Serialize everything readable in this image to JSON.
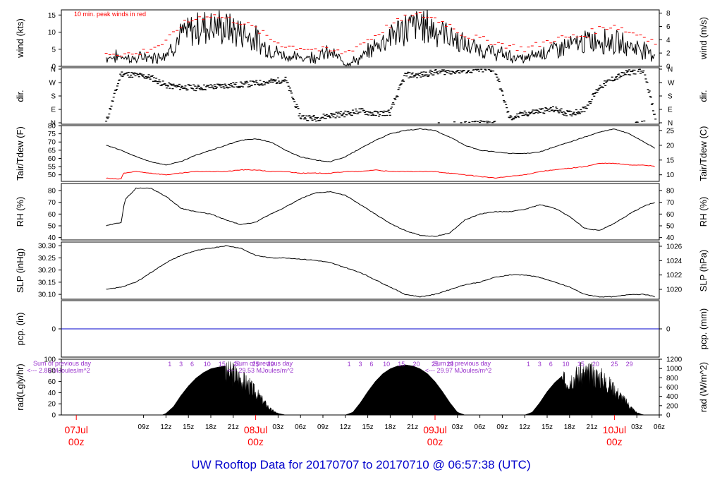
{
  "footer_title": "UW Rooftop Data for 20170707  to  20170710 @ 06:57:38  (UTC)",
  "colors": {
    "frame": "#000000",
    "wind": "#000000",
    "gust": "#ff0000",
    "dew": "#ff0000",
    "precip": "#0000cc",
    "title": "#0000cc",
    "date": "#ff0000",
    "solar_note": "#9933cc"
  },
  "chart_data": [
    {
      "type": "line",
      "panel": "wind",
      "ylabel": "wind (kts)",
      "ylabel_right": "wind (m/s)",
      "yticks": [
        0,
        5,
        10,
        15
      ],
      "yticks_right": [
        0,
        2,
        4,
        6,
        8
      ],
      "ylim": [
        0,
        16.5
      ],
      "annotation": "10 min. peak winds in red",
      "series": [
        {
          "name": "wind",
          "hours": [
            4,
            6,
            8,
            9,
            10,
            11,
            12,
            13,
            14,
            16,
            18,
            20,
            22,
            24,
            25,
            26,
            27,
            28,
            30,
            32,
            34,
            36,
            38,
            40,
            42,
            44,
            46,
            48,
            50,
            52,
            54,
            56,
            58,
            60,
            62,
            64,
            66,
            68,
            70,
            72,
            74,
            76,
            77.5
          ],
          "values": [
            2.5,
            3,
            2,
            3,
            2.5,
            3,
            4,
            6,
            9,
            11,
            12,
            11,
            10,
            8,
            6,
            5,
            4,
            3,
            2.5,
            3,
            4,
            1,
            2,
            6,
            9,
            11,
            12,
            11,
            9,
            6,
            5,
            4,
            3,
            2,
            4,
            5,
            6,
            7,
            8,
            7,
            6,
            5,
            3
          ]
        },
        {
          "name": "10 min. peak winds in red",
          "hours": [
            4,
            8,
            12,
            14,
            16,
            18,
            20,
            22,
            24,
            26,
            28,
            32,
            36,
            40,
            42,
            44,
            46,
            48,
            50,
            52,
            56,
            60,
            64,
            68,
            70,
            72,
            74,
            76,
            77.5
          ],
          "values": [
            4,
            3.5,
            7,
            12,
            14,
            15,
            14,
            13,
            11,
            8,
            6,
            5,
            4,
            9,
            12,
            14,
            15,
            14,
            12,
            9,
            7,
            5,
            8,
            9,
            11,
            12,
            10,
            9,
            7
          ]
        }
      ]
    },
    {
      "type": "scatter",
      "panel": "direction",
      "ylabel": "dir.",
      "ylabel_right": "dir.",
      "ytick_labels": [
        "N",
        "E",
        "S",
        "W",
        "N"
      ],
      "ylim": [
        0,
        360
      ],
      "series": [
        {
          "name": "dir",
          "hours": [
            4,
            6,
            8,
            10,
            12,
            14,
            16,
            18,
            20,
            22,
            24,
            26,
            28,
            30,
            32,
            34,
            36,
            38,
            40,
            42,
            44,
            46,
            48,
            50,
            52,
            54,
            56,
            58,
            60,
            62,
            64,
            66,
            68,
            70,
            72,
            74,
            76,
            77.5
          ],
          "values": [
            5,
            330,
            320,
            305,
            250,
            240,
            235,
            240,
            250,
            255,
            265,
            275,
            290,
            40,
            30,
            50,
            60,
            80,
            60,
            70,
            320,
            320,
            340,
            345,
            350,
            355,
            360,
            30,
            60,
            80,
            90,
            60,
            90,
            240,
            300,
            340,
            355,
            20
          ]
        }
      ]
    },
    {
      "type": "line",
      "panel": "temperature",
      "ylabel": "Tair/Tdew (F)",
      "ylabel_right": "Tair/Tdew (C)",
      "yticks": [
        50,
        55,
        60,
        65,
        70,
        75,
        80
      ],
      "yticks_right": [
        10,
        15,
        20,
        25
      ],
      "ylim": [
        46,
        80
      ],
      "series": [
        {
          "name": "Tair",
          "hours": [
            4,
            6,
            8,
            10,
            12,
            14,
            16,
            18,
            20,
            22,
            24,
            26,
            28,
            30,
            32,
            34,
            36,
            38,
            40,
            42,
            44,
            46,
            48,
            50,
            52,
            54,
            56,
            58,
            60,
            62,
            64,
            66,
            68,
            70,
            72,
            74,
            76,
            77.5
          ],
          "values": [
            68,
            65,
            61,
            58,
            56,
            58,
            62,
            65,
            68,
            71,
            72,
            70,
            65,
            61,
            59,
            58,
            61,
            66,
            71,
            75,
            77,
            78,
            77,
            73,
            68,
            65,
            64,
            63,
            63,
            64,
            67,
            70,
            73,
            76,
            78,
            75,
            70,
            66
          ]
        },
        {
          "name": "Tdew",
          "hours": [
            4,
            5,
            6,
            6.3,
            8,
            10,
            12,
            14,
            16,
            18,
            20,
            22,
            24,
            26,
            28,
            30,
            32,
            34,
            36,
            38,
            40,
            42,
            44,
            46,
            48,
            50,
            52,
            54,
            56,
            58,
            60,
            62,
            64,
            66,
            68,
            70,
            72,
            74,
            76,
            77.5
          ],
          "values": [
            48,
            47.5,
            47.5,
            51,
            52,
            51,
            50,
            51,
            52,
            52,
            52,
            53,
            53,
            52,
            52,
            51,
            51,
            51,
            52,
            52,
            53,
            52,
            52,
            52,
            52,
            51,
            50,
            49,
            48,
            49,
            50,
            52,
            53,
            54,
            55,
            57,
            57,
            56,
            56,
            55
          ]
        }
      ]
    },
    {
      "type": "line",
      "panel": "humidity",
      "ylabel": "RH (%)",
      "ylabel_right": "RH (%)",
      "yticks": [
        40,
        50,
        60,
        70,
        80
      ],
      "yticks_right": [
        40,
        50,
        60,
        70,
        80
      ],
      "ylim": [
        38,
        86
      ],
      "series": [
        {
          "name": "RH",
          "hours": [
            4,
            6,
            6.5,
            8,
            10,
            12,
            14,
            16,
            18,
            20,
            22,
            24,
            26,
            28,
            30,
            32,
            34,
            36,
            38,
            40,
            42,
            44,
            46,
            48,
            50,
            52,
            54,
            56,
            58,
            60,
            62,
            64,
            66,
            68,
            70,
            72,
            74,
            76,
            77.5
          ],
          "values": [
            50,
            53,
            72,
            82,
            82,
            75,
            65,
            62,
            60,
            55,
            51,
            53,
            60,
            66,
            73,
            78,
            79,
            76,
            68,
            60,
            52,
            46,
            42,
            41,
            44,
            55,
            60,
            62,
            62,
            64,
            68,
            65,
            58,
            48,
            46,
            52,
            60,
            67,
            70
          ]
        }
      ]
    },
    {
      "type": "line",
      "panel": "pressure",
      "ylabel": "SLP (inHg)",
      "ylabel_right": "SLP (hPa)",
      "yticks": [
        30.1,
        30.15,
        30.2,
        30.25,
        30.3
      ],
      "yticks_right": [
        1020,
        1022,
        1024,
        1026
      ],
      "ylim": [
        30.08,
        30.315
      ],
      "series": [
        {
          "name": "SLP",
          "hours": [
            4,
            6,
            8,
            10,
            12,
            14,
            16,
            18,
            20,
            22,
            24,
            26,
            28,
            30,
            32,
            34,
            36,
            38,
            40,
            42,
            44,
            46,
            48,
            50,
            52,
            54,
            56,
            58,
            60,
            62,
            64,
            66,
            68,
            70,
            72,
            74,
            76,
            77.5
          ],
          "values": [
            30.12,
            30.13,
            30.15,
            30.19,
            30.23,
            30.26,
            30.28,
            30.29,
            30.3,
            30.29,
            30.26,
            30.25,
            30.25,
            30.245,
            30.24,
            30.23,
            30.21,
            30.19,
            30.16,
            30.13,
            30.1,
            30.09,
            30.1,
            30.12,
            30.14,
            30.15,
            30.17,
            30.18,
            30.18,
            30.17,
            30.15,
            30.13,
            30.1,
            30.09,
            30.09,
            30.1,
            30.1,
            30.09
          ]
        }
      ]
    },
    {
      "type": "line",
      "panel": "precipitation",
      "ylabel": "pcp. (in)",
      "ylabel_right": "pcp. (mm)",
      "yticks": [
        0
      ],
      "yticks_right": [
        0
      ],
      "series": [
        {
          "name": "pcp",
          "hours": [
            4,
            77.5
          ],
          "values": [
            0,
            0
          ]
        }
      ]
    },
    {
      "type": "area",
      "panel": "solar",
      "ylabel": "rad(Lgly/hr)",
      "ylabel_right": "rad (W/m^2)",
      "yticks": [
        0,
        20,
        40,
        60,
        80,
        100
      ],
      "yticks_right": [
        0,
        200,
        400,
        600,
        800,
        1000,
        1200
      ],
      "ylim": [
        0,
        100
      ],
      "series": [
        {
          "name": "rad",
          "hours": [
            4,
            11.5,
            12,
            13,
            14,
            15,
            16,
            17,
            18,
            19,
            20,
            21,
            22,
            23,
            24,
            25,
            26,
            27,
            28,
            29,
            30,
            36,
            37,
            38,
            39,
            40,
            41,
            42,
            43,
            44,
            45,
            46,
            47,
            48,
            49,
            50,
            51,
            52,
            53,
            54,
            60,
            61,
            62,
            63,
            64,
            65,
            66,
            67,
            68,
            69,
            70,
            71,
            72,
            73,
            74,
            75,
            76,
            77.5
          ],
          "values": [
            0,
            0,
            3,
            15,
            35,
            52,
            66,
            76,
            83,
            86,
            88,
            90,
            78,
            65,
            48,
            30,
            12,
            3,
            0,
            0,
            0,
            0,
            5,
            22,
            42,
            60,
            74,
            83,
            88,
            90,
            88,
            83,
            74,
            60,
            42,
            22,
            5,
            0,
            0,
            0,
            0,
            5,
            22,
            42,
            58,
            70,
            78,
            84,
            88,
            86,
            82,
            70,
            55,
            38,
            20,
            5,
            0,
            0
          ]
        }
      ],
      "daily_totals": [
        {
          "label": "Sum of previous day",
          "value": "<--- 2.85 MJoules/m^2"
        },
        {
          "label": "Sum of previous day",
          "value": "<--- 29.53 MJoules/m^2"
        },
        {
          "label": "Sum of previous day",
          "value": "<--- 29.97 MJoules/m^2"
        }
      ],
      "cloud_marks": [
        "1",
        "3",
        "6",
        "10",
        "15",
        "20",
        "25",
        "29"
      ]
    }
  ],
  "x_axis": {
    "hour_ticks": [
      "09z",
      "12z",
      "15z",
      "18z",
      "21z",
      "03z",
      "06z",
      "09z",
      "12z",
      "15z",
      "18z",
      "21z",
      "03z",
      "06z",
      "09z",
      "12z",
      "15z",
      "18z",
      "21z",
      "03z",
      "06z"
    ],
    "tick_hours": [
      9,
      12,
      15,
      18,
      21,
      27,
      30,
      33,
      36,
      39,
      42,
      45,
      51,
      54,
      57,
      60,
      63,
      66,
      69,
      75,
      78
    ],
    "date_labels": [
      {
        "day": "07Jul",
        "zero": "00z",
        "hour": 0
      },
      {
        "day": "08Jul",
        "zero": "00z",
        "hour": 24
      },
      {
        "day": "09Jul",
        "zero": "00z",
        "hour": 48
      },
      {
        "day": "10Jul",
        "zero": "00z",
        "hour": 72
      }
    ]
  }
}
